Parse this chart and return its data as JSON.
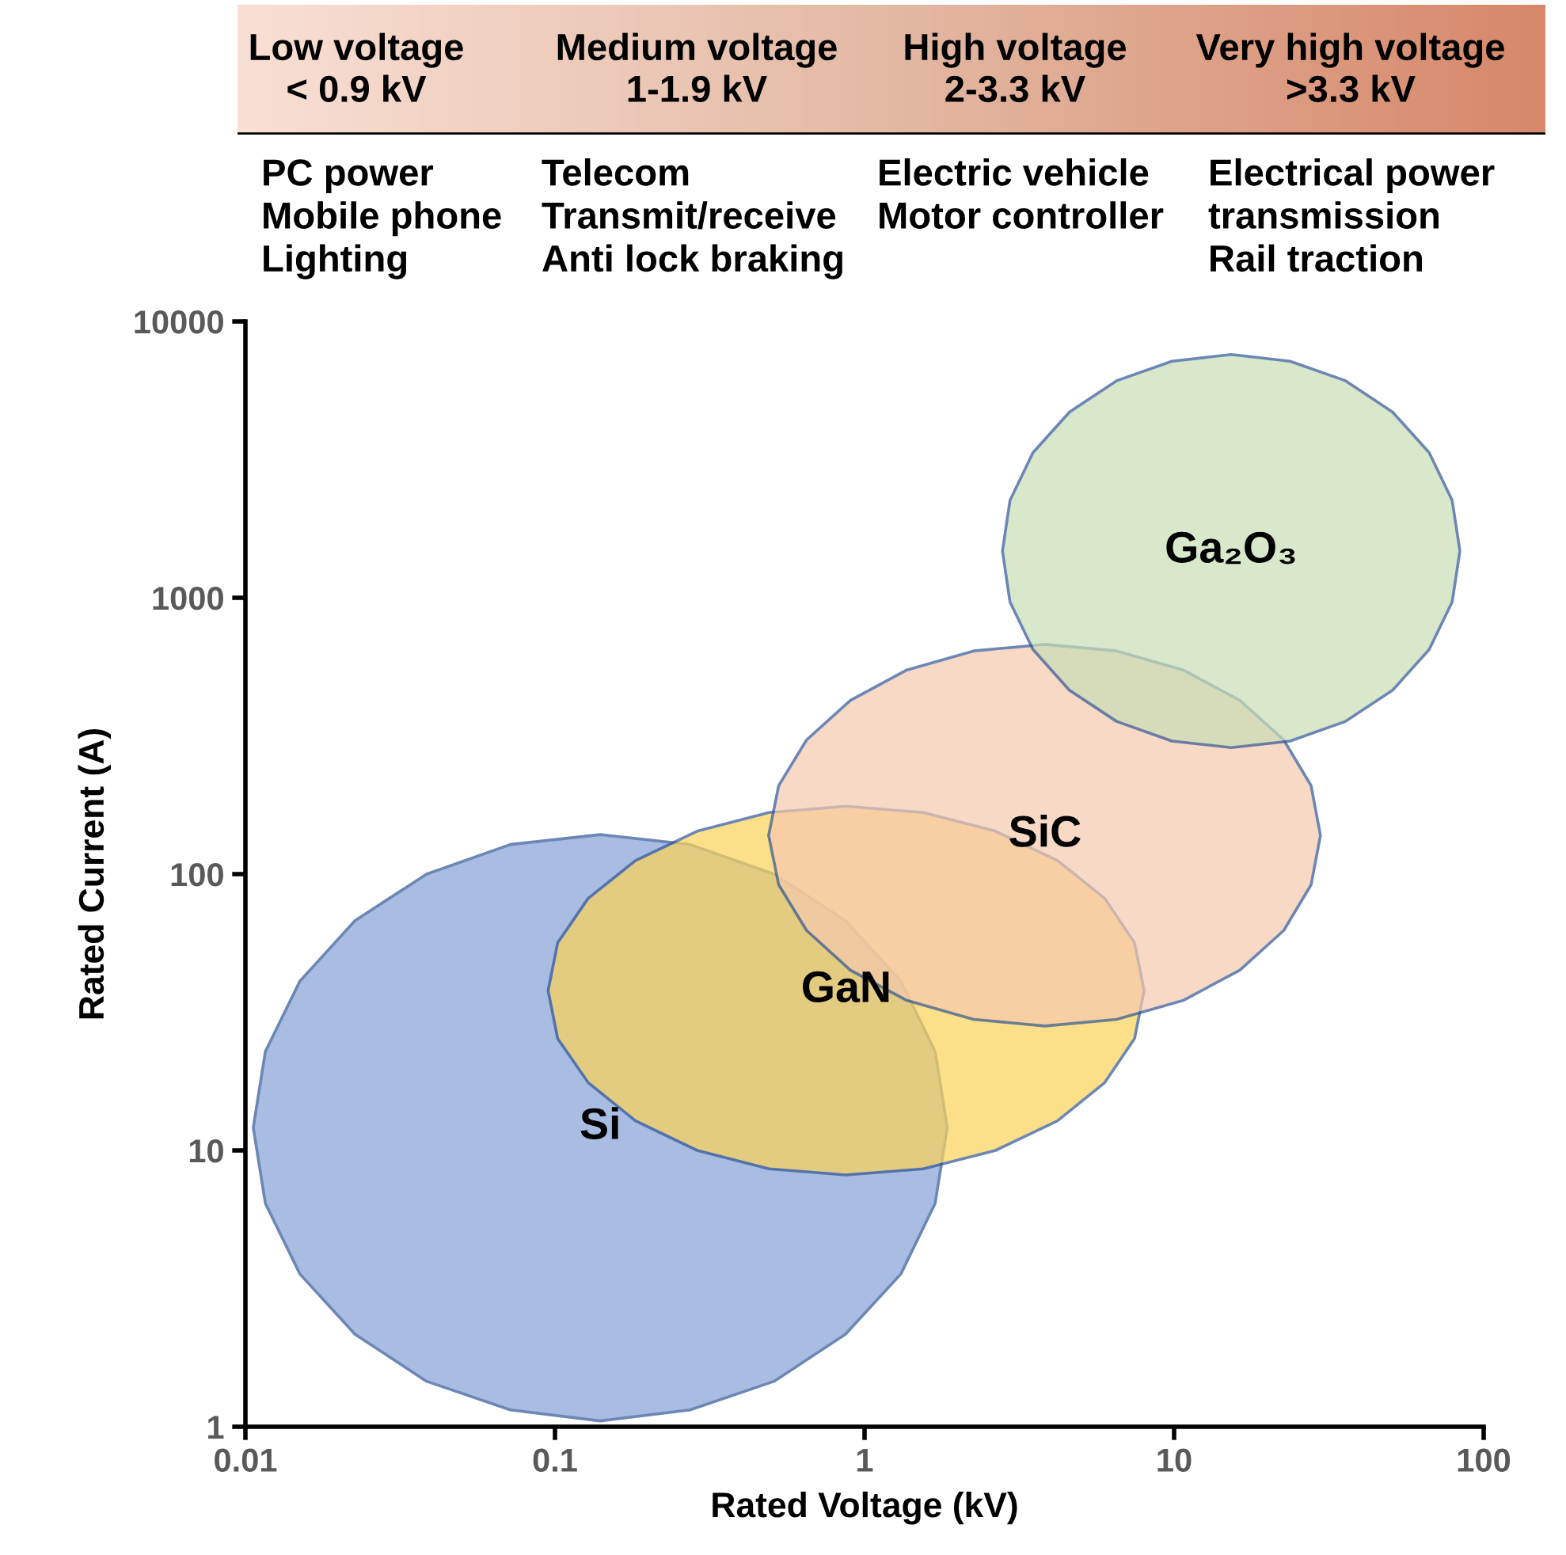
{
  "chart_data": {
    "type": "area",
    "xlabel": "Rated Voltage (kV)",
    "ylabel": "Rated Current (A)",
    "log": "xy",
    "xlim": [
      0.01,
      100
    ],
    "ylim": [
      1,
      10000
    ],
    "xticks": [
      0.01,
      0.1,
      1,
      10,
      100
    ],
    "yticks": [
      1,
      10,
      100,
      1000,
      10000
    ],
    "grid": false,
    "legend": false,
    "series": [
      {
        "name": "Si",
        "color": "#aabde3",
        "x": [
          1.85,
          1.69,
          1.31,
          0.867,
          0.51,
          0.273,
          0.14,
          0.0718,
          0.0385,
          0.0226,
          0.015,
          0.0116,
          0.0106,
          0.0116,
          0.015,
          0.0226,
          0.0385,
          0.0718,
          0.14,
          0.273,
          0.51,
          0.867,
          1.31,
          1.69
        ],
        "values": [
          12.1,
          22.8,
          41,
          67.9,
          100,
          128,
          139,
          128,
          100,
          67.9,
          41,
          22.8,
          12.1,
          6.43,
          3.57,
          2.16,
          1.46,
          1.15,
          1.05,
          1.15,
          1.46,
          2.16,
          3.57,
          6.43
        ]
      },
      {
        "name": "GaN",
        "color": "#fde18a",
        "x": [
          8.0,
          7.45,
          5.97,
          4.2,
          2.65,
          1.55,
          0.87,
          0.491,
          0.288,
          0.182,
          0.128,
          0.102,
          0.095,
          0.102,
          0.128,
          0.182,
          0.288,
          0.491,
          0.87,
          1.55,
          2.65,
          4.2,
          5.97,
          7.45
        ],
        "values": [
          37.9,
          56.4,
          81.7,
          112,
          143,
          167,
          176,
          167,
          143,
          112,
          81.7,
          56.4,
          37.9,
          25.4,
          17.6,
          12.8,
          10.0,
          8.58,
          8.15,
          8.58,
          10.0,
          12.8,
          17.6,
          25.4
        ]
      },
      {
        "name": "SiC",
        "color": "#f8d9c6",
        "x": [
          29.7,
          27.7,
          22.6,
          16.3,
          10.7,
          6.52,
          3.83,
          2.25,
          1.37,
          0.9,
          0.65,
          0.528,
          0.49,
          0.528,
          0.65,
          0.9,
          1.37,
          2.25,
          3.83,
          6.52,
          10.7,
          16.3,
          22.6,
          27.7
        ],
        "values": [
          138,
          209,
          306,
          425,
          548,
          642,
          678,
          642,
          548,
          425,
          306,
          209,
          138,
          91.5,
          62.5,
          44.9,
          34.9,
          29.8,
          28.2,
          29.8,
          34.9,
          44.9,
          62.5,
          91.5
        ]
      },
      {
        "name": "Ga₂O₃",
        "color": "#d9e8cc",
        "x": [
          83.8,
          79.1,
          66.7,
          50.8,
          35.8,
          23.7,
          15.3,
          9.84,
          6.52,
          4.59,
          3.5,
          2.95,
          2.79,
          2.95,
          3.5,
          4.59,
          6.52,
          9.84,
          15.3,
          23.7,
          35.8,
          50.8,
          66.7,
          79.1
        ],
        "values": [
          1476,
          2250,
          3350,
          4700,
          6100,
          7180,
          7590,
          7180,
          6100,
          4700,
          3350,
          2250,
          1476,
          966,
          650,
          463,
          357,
          303,
          287,
          303,
          357,
          463,
          650,
          966
        ]
      }
    ],
    "annotations": [
      "Low voltage\n< 0.9 kV",
      "Medium voltage\n1-1.9 kV",
      "High voltage\n2-3.3 kV",
      "Very high voltage\n>3.3 kV",
      "PC power\nMobile phone\nLighting",
      "Telecom\nTransmit/receive\nAnti lock braking",
      "Electric vehicle\nMotor controller",
      "Electrical power\ntransmission\nRail traction"
    ]
  }
}
